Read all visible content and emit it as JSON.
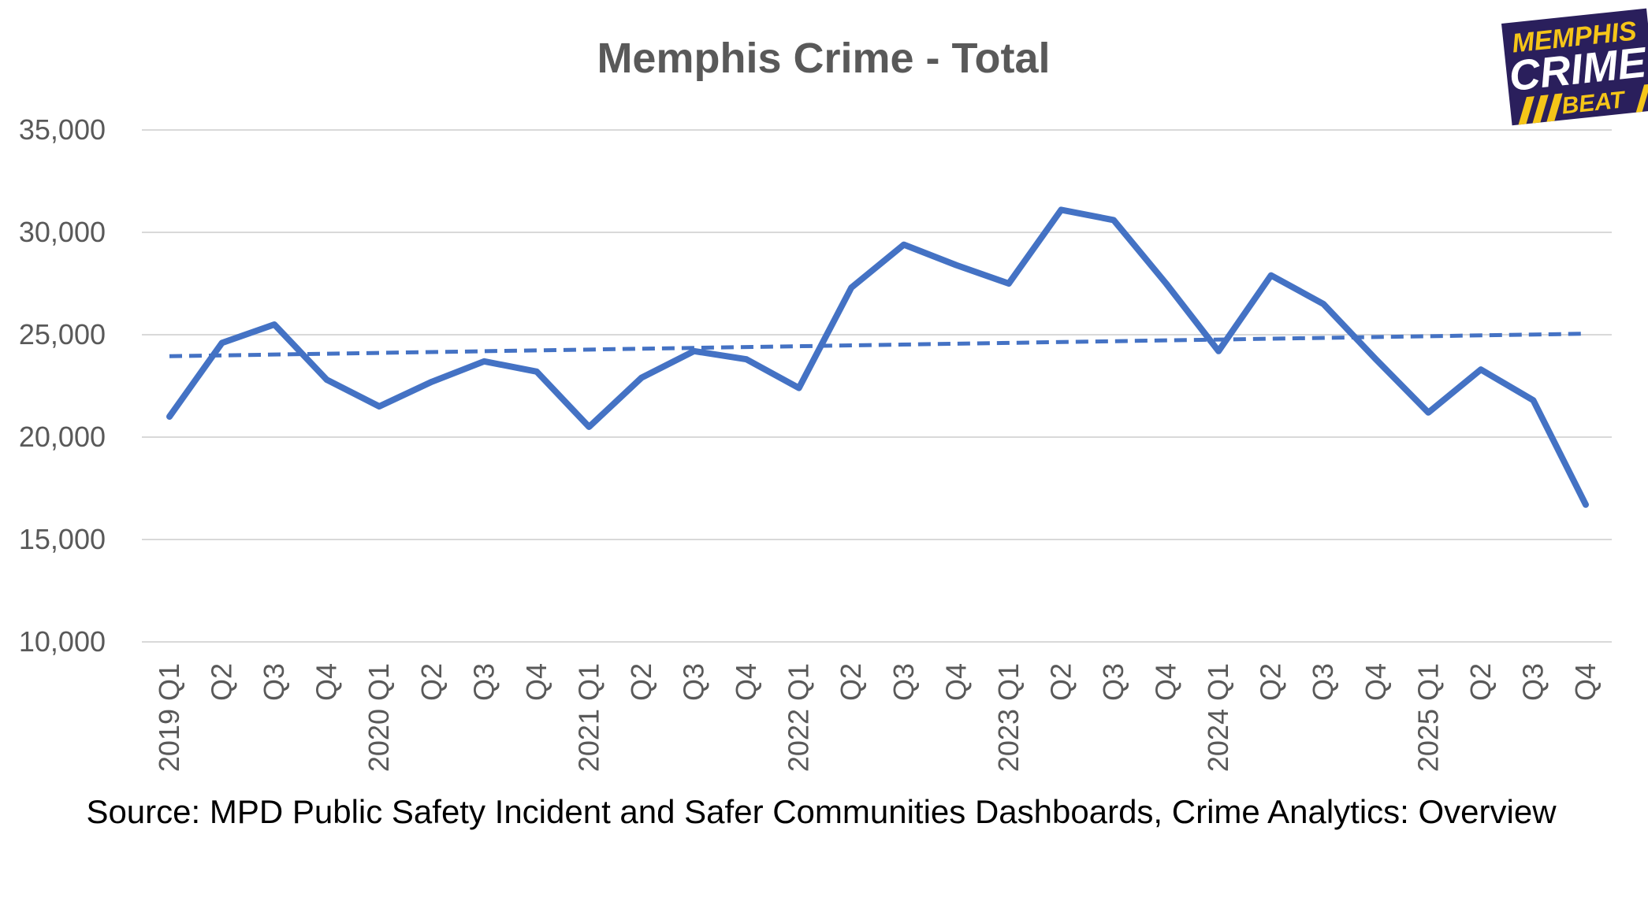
{
  "colors": {
    "series": "#4472C4",
    "grid": "#d9d9d9",
    "text": "#595959",
    "logo_bg": "#2a1f5c",
    "logo_yellow": "#f5c518",
    "logo_white": "#ffffff"
  },
  "logo": {
    "line1": "MEMPHIS",
    "line2": "CRIME",
    "line3": "BEAT"
  },
  "chart_data": {
    "type": "line",
    "title": "Memphis Crime - Total",
    "xlabel": "",
    "ylabel": "",
    "ylim": [
      10000,
      35000
    ],
    "yticks": [
      10000,
      15000,
      20000,
      25000,
      30000,
      35000
    ],
    "ytick_labels": [
      "10,000",
      "15,000",
      "20,000",
      "25,000",
      "30,000",
      "35,000"
    ],
    "grid": true,
    "legend": "none",
    "categories": [
      "2019 Q1",
      "Q2",
      "Q3",
      "Q4",
      "2020 Q1",
      "Q2",
      "Q3",
      "Q4",
      "2021 Q1",
      "Q2",
      "Q3",
      "Q4",
      "2022 Q1",
      "Q2",
      "Q3",
      "Q4",
      "2023 Q1",
      "Q2",
      "Q3",
      "Q4",
      "2024 Q1",
      "Q2",
      "Q3",
      "Q4",
      "2025 Q1",
      "Q2",
      "Q3",
      "Q4"
    ],
    "series": [
      {
        "values": [
          21000,
          24600,
          25500,
          22800,
          21500,
          22700,
          23700,
          23200,
          20500,
          22900,
          24200,
          23800,
          22400,
          27300,
          29400,
          28400,
          27500,
          31100,
          30600,
          27500,
          24200,
          27900,
          26500,
          23800,
          21200,
          23300,
          21800,
          16700
        ]
      }
    ],
    "trendline": {
      "style": "dashed",
      "start": 23950,
      "end": 25050
    },
    "source": "Source: MPD Public Safety Incident and Safer Communities Dashboards, Crime Analytics: Overview"
  }
}
